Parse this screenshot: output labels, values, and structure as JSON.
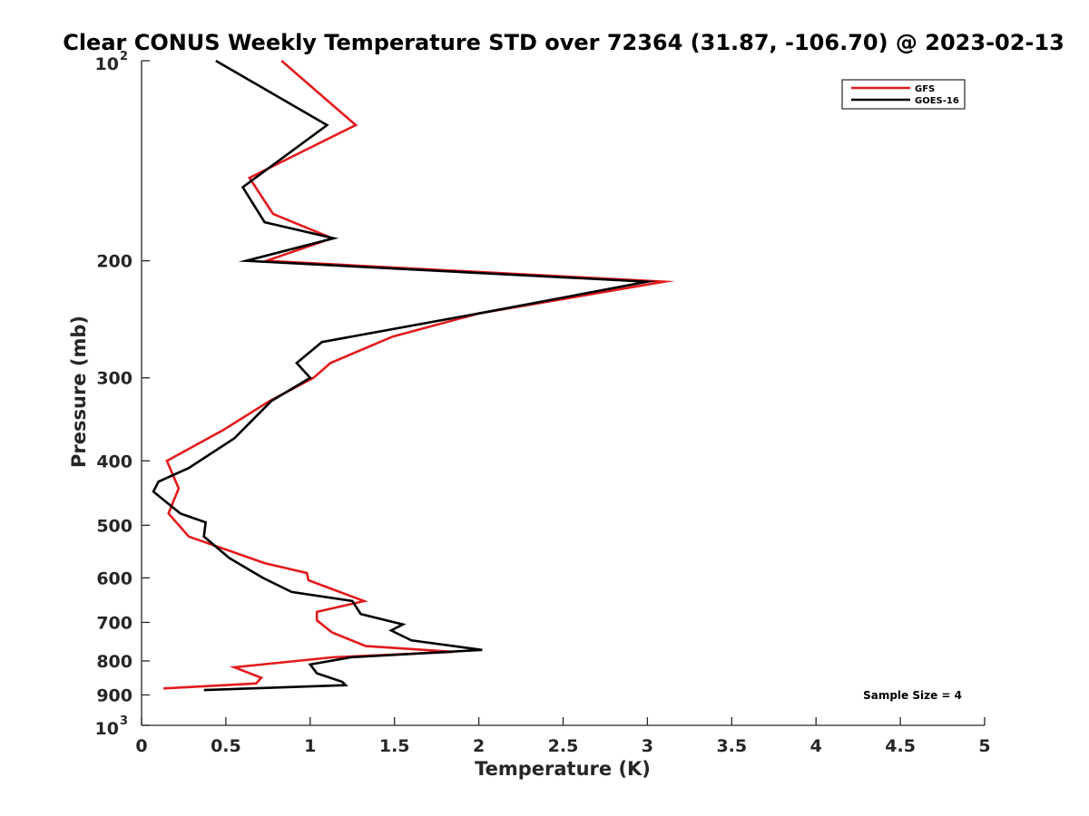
{
  "chart_data": {
    "type": "line",
    "title": "Clear CONUS Weekly Temperature STD over 72364 (31.87, -106.70) @ 2023-02-13",
    "xlabel": "Temperature (K)",
    "ylabel": "Pressure (mb)",
    "xlim": [
      0,
      5
    ],
    "ylim": [
      100,
      1000
    ],
    "y_scale": "log",
    "y_reversed": true,
    "x_ticks": [
      "0",
      "0.5",
      "1",
      "1.5",
      "2",
      "2.5",
      "3",
      "3.5",
      "4",
      "4.5",
      "5"
    ],
    "y_ticks": [
      {
        "value": 100,
        "label": "10",
        "sup": "2"
      },
      {
        "value": 200,
        "label": "200"
      },
      {
        "value": 300,
        "label": "300"
      },
      {
        "value": 400,
        "label": "400"
      },
      {
        "value": 500,
        "label": "500"
      },
      {
        "value": 600,
        "label": "600"
      },
      {
        "value": 700,
        "label": "700"
      },
      {
        "value": 800,
        "label": "800"
      },
      {
        "value": 900,
        "label": "900"
      },
      {
        "value": 1000,
        "label": "10",
        "sup": "3"
      }
    ],
    "legend_position": "top-right",
    "grid": false,
    "annotation": "Sample Size = 4",
    "series": [
      {
        "name": "GFS",
        "color": "#e31a1c",
        "points": [
          [
            0.83,
            100
          ],
          [
            1.27,
            125
          ],
          [
            0.64,
            150
          ],
          [
            0.78,
            170
          ],
          [
            1.13,
            185
          ],
          [
            0.74,
            200
          ],
          [
            3.1,
            215
          ],
          [
            2.0,
            240
          ],
          [
            1.49,
            260
          ],
          [
            1.12,
            285
          ],
          [
            1.02,
            300
          ],
          [
            0.76,
            325
          ],
          [
            0.48,
            360
          ],
          [
            0.15,
            400
          ],
          [
            0.22,
            440
          ],
          [
            0.16,
            480
          ],
          [
            0.28,
            520
          ],
          [
            0.73,
            570
          ],
          [
            0.98,
            590
          ],
          [
            0.99,
            605
          ],
          [
            1.32,
            650
          ],
          [
            1.04,
            675
          ],
          [
            1.04,
            695
          ],
          [
            1.13,
            725
          ],
          [
            1.33,
            760
          ],
          [
            1.85,
            775
          ],
          [
            1.13,
            790
          ],
          [
            0.55,
            818
          ],
          [
            0.71,
            848
          ],
          [
            0.68,
            865
          ],
          [
            0.13,
            880
          ]
        ]
      },
      {
        "name": "GOES-16",
        "color": "#000000",
        "points": [
          [
            0.44,
            100
          ],
          [
            1.1,
            125
          ],
          [
            0.6,
            155
          ],
          [
            0.73,
            175
          ],
          [
            1.14,
            185
          ],
          [
            0.62,
            200
          ],
          [
            3.0,
            215
          ],
          [
            2.0,
            240
          ],
          [
            1.07,
            265
          ],
          [
            0.92,
            285
          ],
          [
            1.0,
            300
          ],
          [
            0.77,
            325
          ],
          [
            0.55,
            370
          ],
          [
            0.28,
            410
          ],
          [
            0.1,
            430
          ],
          [
            0.07,
            445
          ],
          [
            0.23,
            480
          ],
          [
            0.38,
            495
          ],
          [
            0.37,
            520
          ],
          [
            0.52,
            560
          ],
          [
            0.72,
            600
          ],
          [
            0.89,
            630
          ],
          [
            1.25,
            650
          ],
          [
            1.3,
            680
          ],
          [
            1.55,
            705
          ],
          [
            1.48,
            720
          ],
          [
            1.6,
            745
          ],
          [
            2.02,
            770
          ],
          [
            1.24,
            790
          ],
          [
            1.0,
            810
          ],
          [
            1.04,
            835
          ],
          [
            1.19,
            860
          ],
          [
            1.21,
            870
          ],
          [
            0.37,
            885
          ]
        ]
      }
    ]
  }
}
